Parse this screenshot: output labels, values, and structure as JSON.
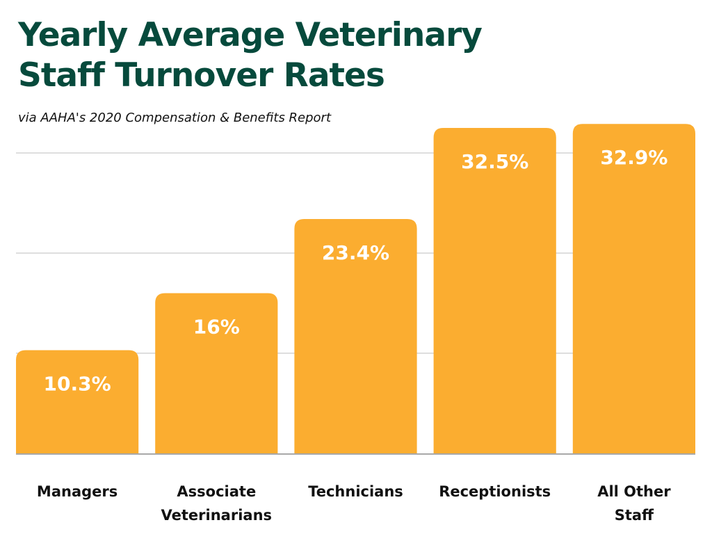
{
  "chart_data": {
    "type": "bar",
    "title": "Yearly Average Veterinary Staff Turnover Rates",
    "subtitle": "via AAHA's 2020 Compensation & Benefits Report",
    "xlabel": "",
    "ylabel": "",
    "categories": [
      [
        "Managers"
      ],
      [
        "Associate",
        "Veterinarians"
      ],
      [
        "Technicians"
      ],
      [
        "Receptionists"
      ],
      [
        "All Other",
        "Staff"
      ]
    ],
    "values": [
      10.3,
      16,
      23.4,
      32.5,
      32.9
    ],
    "data_labels": [
      "10.3%",
      "16%",
      "23.4%",
      "32.5%",
      "32.9%"
    ],
    "ylim": [
      0,
      30
    ],
    "gridlines": [
      10,
      20,
      30
    ],
    "grid": true,
    "legend": "none",
    "colors": {
      "bar": "#fbad30",
      "bar_label": "#ffffff",
      "gridline": "#d4d4d4",
      "baseline": "#a8a8a8",
      "title": "#064a3c",
      "category_label": "#111111"
    }
  }
}
